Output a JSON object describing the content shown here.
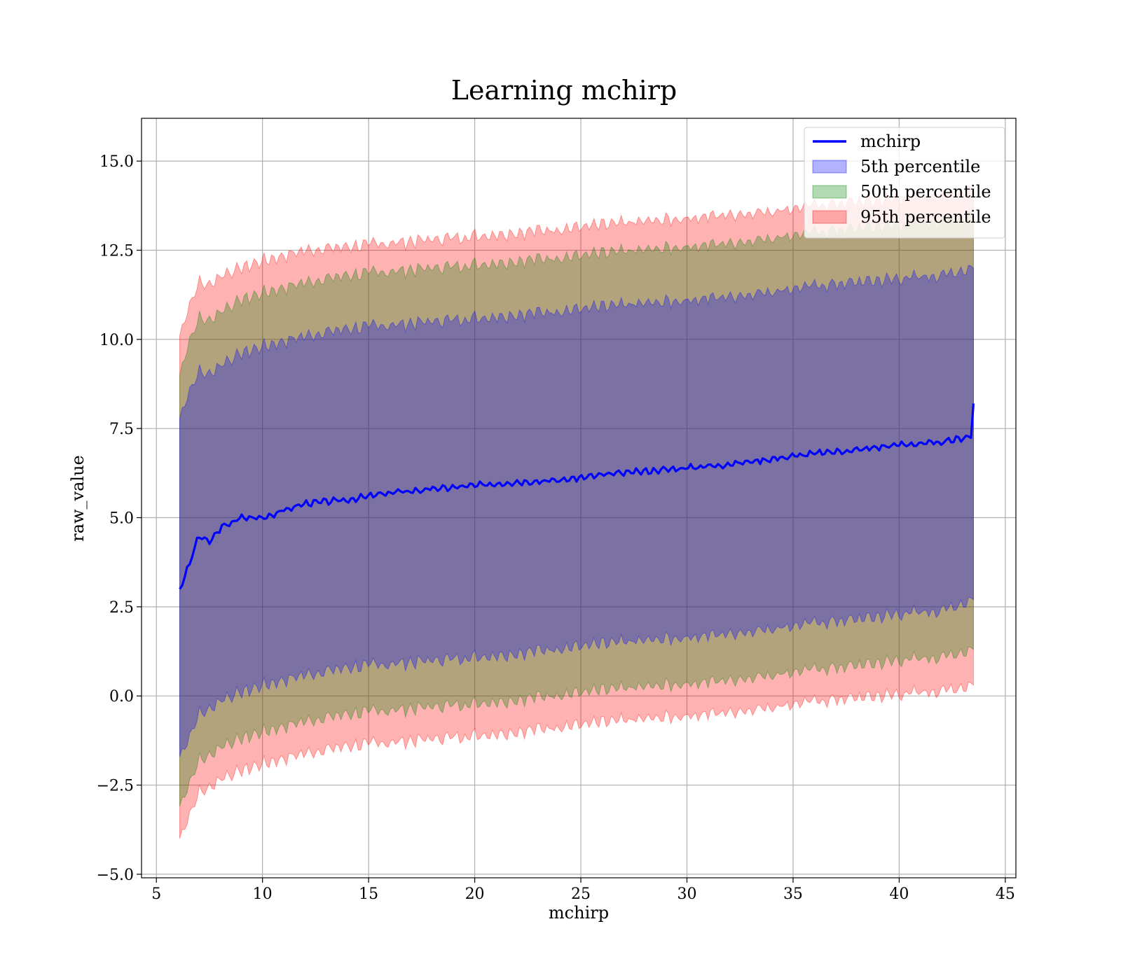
{
  "chart_data": {
    "type": "line",
    "title": "Learning mchirp",
    "xlabel": "mchirp",
    "ylabel": "raw_value",
    "xlim": [
      4.3,
      45.5
    ],
    "ylim": [
      -5.1,
      16.2
    ],
    "xticks": [
      5,
      10,
      15,
      20,
      25,
      30,
      35,
      40,
      45
    ],
    "xtick_labels": [
      "5",
      "10",
      "15",
      "20",
      "25",
      "30",
      "35",
      "40",
      "45"
    ],
    "yticks": [
      -5.0,
      -2.5,
      0.0,
      2.5,
      5.0,
      7.5,
      10.0,
      12.5,
      15.0
    ],
    "ytick_labels": [
      "−5.0",
      "−2.5",
      "0.0",
      "2.5",
      "5.0",
      "7.5",
      "10.0",
      "12.5",
      "15.0"
    ],
    "grid": true,
    "legend_position": "top-right",
    "series": [
      {
        "name": "mchirp",
        "kind": "line",
        "color": "#0000ff",
        "x": [
          6.1,
          6.5,
          7,
          7.5,
          8,
          9,
          10,
          12,
          14,
          16,
          18,
          20,
          22,
          24,
          26,
          28,
          30,
          32,
          34,
          36,
          38,
          40,
          42,
          43.4,
          43.5
        ],
        "y": [
          3.0,
          3.6,
          4.5,
          4.3,
          4.7,
          5.0,
          5.0,
          5.4,
          5.5,
          5.7,
          5.8,
          5.9,
          6.0,
          6.05,
          6.2,
          6.3,
          6.4,
          6.5,
          6.65,
          6.8,
          6.9,
          7.05,
          7.1,
          7.3,
          8.2
        ]
      },
      {
        "name": "5th percentile",
        "kind": "band",
        "color": "#0000ff",
        "x": [
          6.1,
          6.5,
          7,
          7.5,
          8,
          9,
          10,
          12,
          14,
          16,
          18,
          20,
          22,
          24,
          26,
          28,
          30,
          32,
          34,
          36,
          38,
          40,
          42,
          43.5
        ],
        "upper": [
          7.8,
          8.5,
          9.1,
          9.0,
          9.3,
          9.6,
          9.8,
          10.1,
          10.3,
          10.4,
          10.5,
          10.6,
          10.7,
          10.8,
          10.9,
          11.0,
          11.1,
          11.2,
          11.35,
          11.5,
          11.6,
          11.7,
          11.8,
          12.0
        ],
        "lower": [
          -1.7,
          -1.2,
          -0.5,
          -0.4,
          -0.1,
          0.1,
          0.3,
          0.6,
          0.8,
          0.9,
          1.0,
          1.1,
          1.2,
          1.35,
          1.45,
          1.55,
          1.65,
          1.75,
          1.9,
          2.05,
          2.15,
          2.3,
          2.4,
          2.7
        ]
      },
      {
        "name": "50th percentile",
        "kind": "band",
        "color": "#008000",
        "x": [
          6.1,
          6.5,
          7,
          7.5,
          8,
          9,
          10,
          12,
          14,
          16,
          18,
          20,
          22,
          24,
          26,
          28,
          30,
          32,
          34,
          36,
          38,
          40,
          42,
          43.5
        ],
        "upper": [
          9.0,
          9.9,
          10.6,
          10.5,
          10.8,
          11.1,
          11.3,
          11.6,
          11.8,
          11.9,
          12.0,
          12.1,
          12.2,
          12.3,
          12.4,
          12.5,
          12.6,
          12.7,
          12.85,
          13.0,
          13.1,
          13.2,
          13.3,
          13.5
        ],
        "lower": [
          -3.1,
          -2.5,
          -1.8,
          -1.7,
          -1.4,
          -1.2,
          -1.0,
          -0.7,
          -0.5,
          -0.4,
          -0.3,
          -0.2,
          -0.1,
          0.05,
          0.15,
          0.25,
          0.35,
          0.45,
          0.6,
          0.75,
          0.85,
          1.0,
          1.1,
          1.3
        ]
      },
      {
        "name": "95th percentile",
        "kind": "band",
        "color": "#ff0000",
        "x": [
          6.1,
          6.5,
          7,
          7.5,
          8,
          9,
          10,
          12,
          14,
          16,
          18,
          20,
          22,
          24,
          26,
          28,
          30,
          32,
          34,
          36,
          38,
          40,
          42,
          43.5
        ],
        "upper": [
          10.1,
          10.9,
          11.6,
          11.5,
          11.8,
          12.0,
          12.2,
          12.5,
          12.6,
          12.7,
          12.8,
          12.9,
          13.0,
          13.1,
          13.2,
          13.3,
          13.4,
          13.5,
          13.6,
          13.75,
          13.85,
          13.95,
          14.05,
          14.2
        ],
        "lower": [
          -4.0,
          -3.4,
          -2.7,
          -2.6,
          -2.3,
          -2.1,
          -1.9,
          -1.6,
          -1.4,
          -1.3,
          -1.2,
          -1.1,
          -1.0,
          -0.85,
          -0.75,
          -0.65,
          -0.55,
          -0.45,
          -0.3,
          -0.15,
          -0.05,
          0.05,
          0.15,
          0.3
        ]
      }
    ]
  }
}
